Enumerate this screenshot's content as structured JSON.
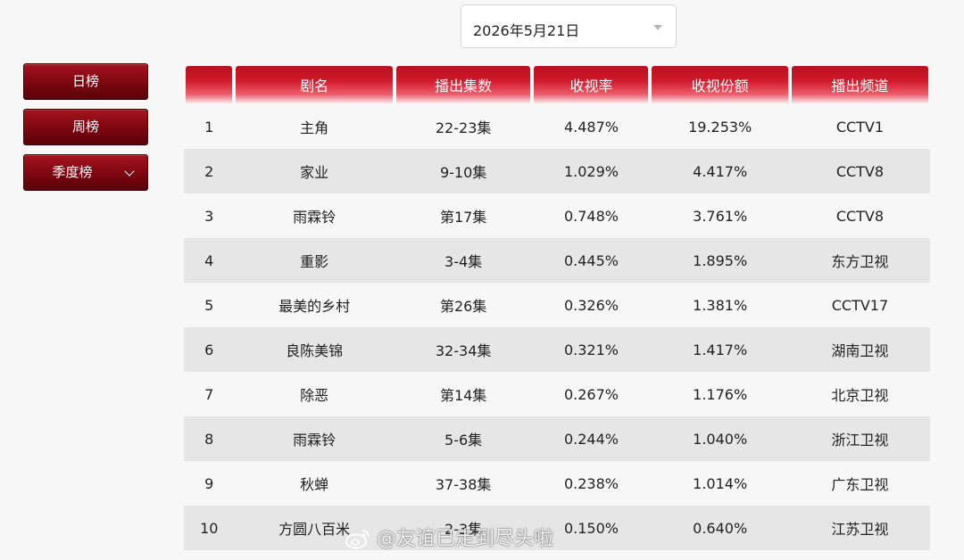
{
  "date_select": {
    "value": "2026年5月21日"
  },
  "nav": [
    {
      "label": "日榜"
    },
    {
      "label": "周榜"
    },
    {
      "label": "季度榜"
    }
  ],
  "table": {
    "headers": [
      "",
      "剧名",
      "播出集数",
      "收视率",
      "收视份额",
      "播出频道"
    ],
    "rows": [
      {
        "rank": "1",
        "name": "主角",
        "episodes": "22-23集",
        "rating": "4.487%",
        "share": "19.253%",
        "channel": "CCTV1"
      },
      {
        "rank": "2",
        "name": "家业",
        "episodes": "9-10集",
        "rating": "1.029%",
        "share": "4.417%",
        "channel": "CCTV8"
      },
      {
        "rank": "3",
        "name": "雨霖铃",
        "episodes": "第17集",
        "rating": "0.748%",
        "share": "3.761%",
        "channel": "CCTV8"
      },
      {
        "rank": "4",
        "name": "重影",
        "episodes": "3-4集",
        "rating": "0.445%",
        "share": "1.895%",
        "channel": "东方卫视"
      },
      {
        "rank": "5",
        "name": "最美的乡村",
        "episodes": "第26集",
        "rating": "0.326%",
        "share": "1.381%",
        "channel": "CCTV17"
      },
      {
        "rank": "6",
        "name": "良陈美锦",
        "episodes": "32-34集",
        "rating": "0.321%",
        "share": "1.417%",
        "channel": "湖南卫视"
      },
      {
        "rank": "7",
        "name": "除恶",
        "episodes": "第14集",
        "rating": "0.267%",
        "share": "1.176%",
        "channel": "北京卫视"
      },
      {
        "rank": "8",
        "name": "雨霖铃",
        "episodes": "5-6集",
        "rating": "0.244%",
        "share": "1.040%",
        "channel": "浙江卫视"
      },
      {
        "rank": "9",
        "name": "秋蝉",
        "episodes": "37-38集",
        "rating": "0.238%",
        "share": "1.014%",
        "channel": "广东卫视"
      },
      {
        "rank": "10",
        "name": "方圆八百米",
        "episodes": "2-3集",
        "rating": "0.150%",
        "share": "0.640%",
        "channel": "江苏卫视"
      }
    ]
  },
  "watermark": {
    "text": "@友谊已走到尽头啦"
  }
}
